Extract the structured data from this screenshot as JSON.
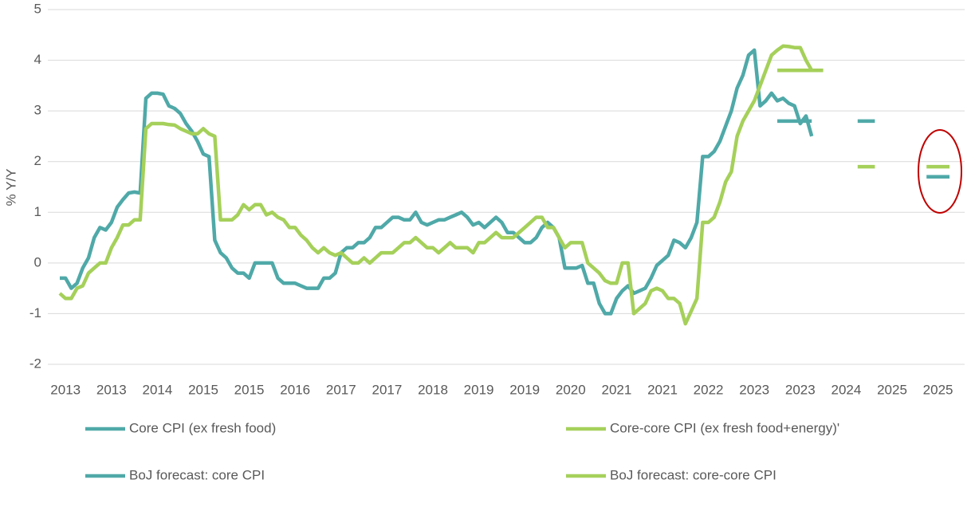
{
  "chart_data": {
    "type": "line",
    "ylabel": "% Y/Y",
    "categories": [
      null,
      "2013",
      null,
      null,
      null,
      null,
      null,
      null,
      null,
      "2013",
      null,
      null,
      null,
      null,
      null,
      null,
      null,
      "2014",
      null,
      null,
      null,
      null,
      null,
      null,
      null,
      "2015",
      null,
      null,
      null,
      null,
      null,
      null,
      null,
      "2015",
      null,
      null,
      null,
      null,
      null,
      null,
      null,
      "2016",
      null,
      null,
      null,
      null,
      null,
      null,
      null,
      "2017",
      null,
      null,
      null,
      null,
      null,
      null,
      null,
      "2017",
      null,
      null,
      null,
      null,
      null,
      null,
      null,
      "2018",
      null,
      null,
      null,
      null,
      null,
      null,
      null,
      "2019",
      null,
      null,
      null,
      null,
      null,
      null,
      null,
      "2019",
      null,
      null,
      null,
      null,
      null,
      null,
      null,
      "2020",
      null,
      null,
      null,
      null,
      null,
      null,
      null,
      "2021",
      null,
      null,
      null,
      null,
      null,
      null,
      null,
      "2021",
      null,
      null,
      null,
      null,
      null,
      null,
      null,
      "2022",
      null,
      null,
      null,
      null,
      null,
      null,
      null,
      "2023",
      null,
      null,
      null,
      null,
      null,
      null,
      null,
      "2023",
      null,
      null,
      null,
      null,
      null,
      null,
      null,
      "2024",
      null,
      null,
      null,
      null,
      null,
      null,
      null,
      "2025",
      null,
      null,
      null,
      null,
      null,
      null,
      null,
      "2025",
      null,
      null
    ],
    "ylim": [
      -2,
      5
    ],
    "yticks": [
      -2,
      -1,
      0,
      1,
      2,
      3,
      4,
      5
    ],
    "grid": true,
    "series": [
      {
        "name": "Core CPI (ex fresh food)",
        "color": "#4fa9a8",
        "values": [
          -0.3,
          -0.3,
          -0.5,
          -0.4,
          -0.1,
          0.1,
          0.5,
          0.7,
          0.65,
          0.8,
          1.1,
          1.25,
          1.38,
          1.4,
          1.38,
          3.25,
          3.35,
          3.35,
          3.33,
          3.1,
          3.05,
          2.95,
          2.75,
          2.6,
          2.4,
          2.15,
          2.1,
          0.45,
          0.2,
          0.1,
          -0.1,
          -0.2,
          -0.2,
          -0.3,
          0,
          0,
          0,
          0,
          -0.3,
          -0.4,
          -0.4,
          -0.4,
          -0.45,
          -0.5,
          -0.5,
          -0.5,
          -0.3,
          -0.3,
          -0.2,
          0.2,
          0.3,
          0.3,
          0.4,
          0.4,
          0.5,
          0.7,
          0.7,
          0.8,
          0.9,
          0.9,
          0.85,
          0.85,
          1.0,
          0.8,
          0.75,
          0.8,
          0.85,
          0.85,
          0.9,
          0.95,
          1.0,
          0.9,
          0.75,
          0.8,
          0.7,
          0.8,
          0.9,
          0.8,
          0.6,
          0.6,
          0.5,
          0.4,
          0.4,
          0.5,
          0.7,
          0.8,
          0.7,
          0.5,
          -0.1,
          -0.1,
          -0.1,
          -0.05,
          -0.4,
          -0.4,
          -0.8,
          -1.0,
          -1.0,
          -0.7,
          -0.55,
          -0.45,
          -0.6,
          -0.55,
          -0.5,
          -0.3,
          -0.05,
          0.05,
          0.15,
          0.45,
          0.4,
          0.3,
          0.5,
          0.8,
          2.1,
          2.1,
          2.2,
          2.4,
          2.7,
          3.0,
          3.45,
          3.7,
          4.1,
          4.2,
          3.1,
          3.2,
          3.35,
          3.2,
          3.25,
          3.15,
          3.1,
          2.75,
          2.9,
          2.5,
          null,
          null,
          null,
          null,
          null,
          null,
          null,
          null,
          null,
          null,
          null,
          null,
          null,
          null,
          null,
          null,
          null,
          null,
          null,
          null,
          null,
          null,
          null,
          null
        ]
      },
      {
        "name": "Core-core CPI (ex fresh food+energy)'",
        "color": "#a5d05a",
        "values": [
          -0.6,
          -0.7,
          -0.7,
          -0.5,
          -0.45,
          -0.2,
          -0.1,
          0,
          0,
          0.3,
          0.5,
          0.75,
          0.75,
          0.85,
          0.85,
          2.65,
          2.75,
          2.75,
          2.75,
          2.73,
          2.72,
          2.65,
          2.6,
          2.55,
          2.55,
          2.65,
          2.55,
          2.5,
          0.85,
          0.85,
          0.85,
          0.95,
          1.15,
          1.05,
          1.15,
          1.15,
          0.95,
          1.0,
          0.9,
          0.85,
          0.7,
          0.7,
          0.55,
          0.45,
          0.3,
          0.2,
          0.3,
          0.2,
          0.15,
          0.2,
          0.1,
          0,
          0,
          0.1,
          0,
          0.1,
          0.2,
          0.2,
          0.2,
          0.3,
          0.4,
          0.4,
          0.5,
          0.4,
          0.3,
          0.3,
          0.2,
          0.3,
          0.4,
          0.3,
          0.3,
          0.3,
          0.2,
          0.4,
          0.4,
          0.5,
          0.6,
          0.5,
          0.5,
          0.5,
          0.6,
          0.7,
          0.8,
          0.9,
          0.9,
          0.7,
          0.7,
          0.5,
          0.3,
          0.4,
          0.4,
          0.4,
          0,
          -0.1,
          -0.2,
          -0.35,
          -0.4,
          -0.4,
          0,
          0,
          -1.0,
          -0.9,
          -0.8,
          -0.55,
          -0.5,
          -0.55,
          -0.7,
          -0.7,
          -0.8,
          -1.2,
          -0.95,
          -0.7,
          0.8,
          0.8,
          0.9,
          1.2,
          1.6,
          1.8,
          2.5,
          2.8,
          3.0,
          3.2,
          3.5,
          3.8,
          4.1,
          4.2,
          4.28,
          4.27,
          4.25,
          4.25,
          4.0,
          3.8,
          null,
          null,
          null,
          null,
          null,
          null,
          null,
          null,
          null,
          null,
          null,
          null,
          null,
          null,
          null,
          null,
          null,
          null,
          null,
          null,
          null,
          null,
          null,
          null
        ]
      },
      {
        "name": "BoJ forecast: core CPI",
        "color": "#4fa9a8",
        "values": [
          null,
          null,
          null,
          null,
          null,
          null,
          null,
          null,
          null,
          null,
          null,
          null,
          null,
          null,
          null,
          null,
          null,
          null,
          null,
          null,
          null,
          null,
          null,
          null,
          null,
          null,
          null,
          null,
          null,
          null,
          null,
          null,
          null,
          null,
          null,
          null,
          null,
          null,
          null,
          null,
          null,
          null,
          null,
          null,
          null,
          null,
          null,
          null,
          null,
          null,
          null,
          null,
          null,
          null,
          null,
          null,
          null,
          null,
          null,
          null,
          null,
          null,
          null,
          null,
          null,
          null,
          null,
          null,
          null,
          null,
          null,
          null,
          null,
          null,
          null,
          null,
          null,
          null,
          null,
          null,
          null,
          null,
          null,
          null,
          null,
          null,
          null,
          null,
          null,
          null,
          null,
          null,
          null,
          null,
          null,
          null,
          null,
          null,
          null,
          null,
          null,
          null,
          null,
          null,
          null,
          null,
          null,
          null,
          null,
          null,
          null,
          null,
          null,
          null,
          null,
          null,
          null,
          null,
          null,
          null,
          null,
          null,
          null,
          null,
          null,
          2.8,
          2.8,
          2.8,
          2.8,
          2.8,
          2.8,
          2.8,
          null,
          null,
          null,
          null,
          null,
          null,
          null,
          2.8,
          2.8,
          2.8,
          2.8,
          null,
          null,
          null,
          null,
          null,
          null,
          null,
          null,
          1.7,
          1.7,
          1.7,
          1.7,
          1.7
        ]
      },
      {
        "name": "BoJ forecast: core-core CPI",
        "color": "#a5d05a",
        "values": [
          null,
          null,
          null,
          null,
          null,
          null,
          null,
          null,
          null,
          null,
          null,
          null,
          null,
          null,
          null,
          null,
          null,
          null,
          null,
          null,
          null,
          null,
          null,
          null,
          null,
          null,
          null,
          null,
          null,
          null,
          null,
          null,
          null,
          null,
          null,
          null,
          null,
          null,
          null,
          null,
          null,
          null,
          null,
          null,
          null,
          null,
          null,
          null,
          null,
          null,
          null,
          null,
          null,
          null,
          null,
          null,
          null,
          null,
          null,
          null,
          null,
          null,
          null,
          null,
          null,
          null,
          null,
          null,
          null,
          null,
          null,
          null,
          null,
          null,
          null,
          null,
          null,
          null,
          null,
          null,
          null,
          null,
          null,
          null,
          null,
          null,
          null,
          null,
          null,
          null,
          null,
          null,
          null,
          null,
          null,
          null,
          null,
          null,
          null,
          null,
          null,
          null,
          null,
          null,
          null,
          null,
          null,
          null,
          null,
          null,
          null,
          null,
          null,
          null,
          null,
          null,
          null,
          null,
          null,
          null,
          null,
          null,
          null,
          null,
          null,
          3.8,
          3.8,
          3.8,
          3.8,
          3.8,
          3.8,
          3.8,
          3.8,
          3.8,
          null,
          null,
          null,
          null,
          null,
          1.9,
          1.9,
          1.9,
          1.9,
          null,
          null,
          null,
          null,
          null,
          null,
          null,
          null,
          1.9,
          1.9,
          1.9,
          1.9,
          1.9
        ]
      }
    ]
  }
}
